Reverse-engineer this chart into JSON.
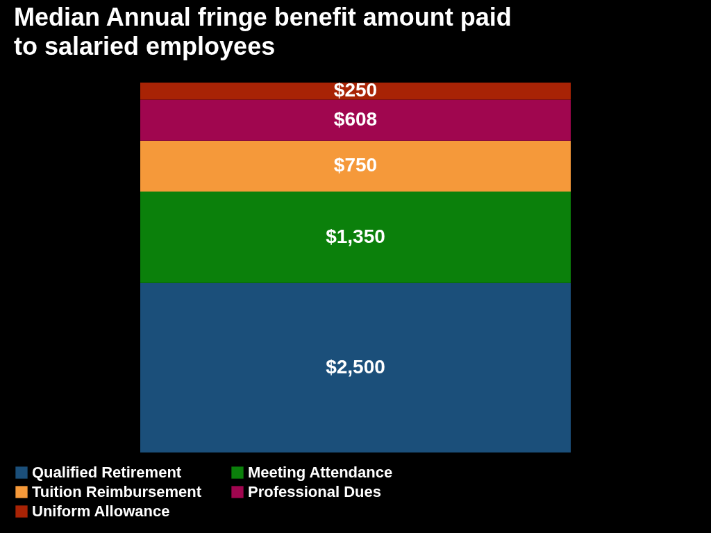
{
  "chart_data": {
    "type": "bar",
    "title": "Median Annual fringe benefit amount paid to salaried employees",
    "categories": [
      null
    ],
    "stacked": true,
    "legend": "bottom",
    "series": [
      {
        "name": "Qualified Retirement",
        "color": "#1b4f7a",
        "values": [
          2500
        ],
        "value_labels": [
          "$2,500"
        ]
      },
      {
        "name": "Meeting Attendance",
        "color": "#0b800b",
        "values": [
          1350
        ],
        "value_labels": [
          "$1,350"
        ]
      },
      {
        "name": "Tuition Reimbursement",
        "color": "#f5993a",
        "values": [
          750
        ],
        "value_labels": [
          "$750"
        ]
      },
      {
        "name": "Professional Dues",
        "color": "#a0064f",
        "values": [
          608
        ],
        "value_labels": [
          "$608"
        ]
      },
      {
        "name": "Uniform Allowance",
        "color": "#a82305",
        "values": [
          250
        ],
        "value_labels": [
          "$250"
        ]
      }
    ]
  }
}
